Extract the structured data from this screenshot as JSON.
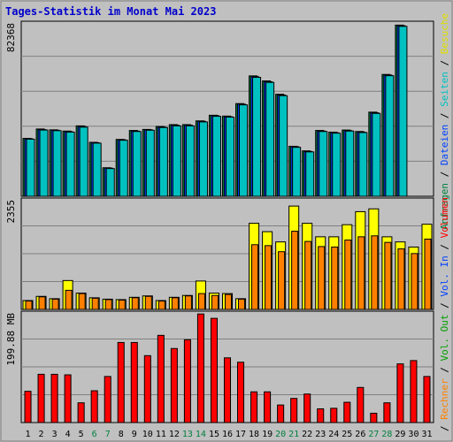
{
  "page_title": "Tages-Statistik im Monat Mai 2023",
  "colors": {
    "background": "#c0c0c0",
    "panel_border": "#000000",
    "title": "#0000cc",
    "anfragen": "#008040",
    "dateien": "#0040ff",
    "seiten": "#00c0c0",
    "besuche": "#ffff00",
    "rechner": "#ff8000",
    "vol_in": "#0040ff",
    "vol_out": "#00a000",
    "volumen": "#ff0000",
    "weekday_label": "#000000",
    "weekend_label": "#008040",
    "grid": "#808080"
  },
  "chart_data": [
    {
      "type": "bar",
      "panel": "top",
      "max_label": "82368",
      "ylim": [
        0,
        82368
      ],
      "categories": [
        "1",
        "2",
        "3",
        "4",
        "5",
        "6",
        "7",
        "8",
        "9",
        "10",
        "11",
        "12",
        "13",
        "14",
        "15",
        "16",
        "17",
        "18",
        "19",
        "20",
        "21",
        "22",
        "23",
        "24",
        "25",
        "26",
        "27",
        "28",
        "29",
        "30",
        "31"
      ],
      "series": [
        {
          "name": "Anfragen",
          "values": [
            27800,
            32300,
            31900,
            31300,
            33800,
            25900,
            13700,
            27300,
            31600,
            32100,
            33500,
            34400,
            34400,
            36200,
            38900,
            38500,
            44500,
            57800,
            55400,
            49000,
            24000,
            21800,
            31600,
            30800,
            31800,
            31100,
            40400,
            58500,
            82200,
            0,
            0
          ]
        },
        {
          "name": "Dateien",
          "values": [
            27600,
            32000,
            31700,
            31000,
            33500,
            25700,
            13500,
            27100,
            31300,
            31900,
            33200,
            34100,
            34100,
            36000,
            38700,
            38200,
            44200,
            57400,
            55000,
            48600,
            23800,
            21500,
            31300,
            30500,
            31500,
            30800,
            40100,
            58200,
            81900,
            0,
            0
          ]
        },
        {
          "name": "Seiten",
          "values": [
            27400,
            31800,
            31500,
            30800,
            33200,
            25500,
            13300,
            26900,
            31100,
            31700,
            33000,
            33800,
            33800,
            35700,
            38400,
            38000,
            43900,
            57100,
            54700,
            48300,
            23500,
            21300,
            31100,
            30300,
            31300,
            30600,
            39800,
            57900,
            81600,
            0,
            0
          ]
        }
      ],
      "series_labels": [
        "Anfragen",
        "Dateien",
        "Seiten"
      ]
    },
    {
      "type": "bar",
      "panel": "middle",
      "max_label": "2355",
      "ylim": [
        0,
        2355
      ],
      "categories": [
        "1",
        "2",
        "3",
        "4",
        "5",
        "6",
        "7",
        "8",
        "9",
        "10",
        "11",
        "12",
        "13",
        "14",
        "15",
        "16",
        "17",
        "18",
        "19",
        "20",
        "21",
        "22",
        "23",
        "24",
        "25",
        "26",
        "27",
        "28",
        "29",
        "30",
        "31"
      ],
      "series": [
        {
          "name": "Besuche",
          "values": [
            190,
            280,
            230,
            620,
            350,
            250,
            220,
            210,
            260,
            290,
            190,
            260,
            300,
            610,
            350,
            340,
            230,
            1850,
            1670,
            1450,
            2220,
            1850,
            1560,
            1560,
            1820,
            2100,
            2160,
            1560,
            1450,
            1340,
            1830
          ]
        },
        {
          "name": "Rechner",
          "values": [
            180,
            270,
            220,
            410,
            340,
            240,
            210,
            200,
            250,
            280,
            180,
            250,
            290,
            340,
            300,
            320,
            220,
            1390,
            1370,
            1240,
            1680,
            1460,
            1350,
            1340,
            1490,
            1560,
            1580,
            1440,
            1300,
            1200,
            1510
          ]
        }
      ],
      "series_labels": [
        "Besuche",
        "Rechner"
      ]
    },
    {
      "type": "bar",
      "panel": "bottom",
      "max_label": "199.88 MB",
      "ylim": [
        0,
        199.88
      ],
      "categories": [
        "1",
        "2",
        "3",
        "4",
        "5",
        "6",
        "7",
        "8",
        "9",
        "10",
        "11",
        "12",
        "13",
        "14",
        "15",
        "16",
        "17",
        "18",
        "19",
        "20",
        "21",
        "22",
        "23",
        "24",
        "25",
        "26",
        "27",
        "28",
        "29",
        "30",
        "31"
      ],
      "series": [
        {
          "name": "Volumen",
          "values": [
            57,
            88,
            88,
            87,
            36,
            58,
            84,
            146,
            146,
            122,
            159,
            135,
            151,
            198,
            190,
            118,
            110,
            56,
            56,
            32,
            44,
            52,
            25,
            26,
            37,
            64,
            17,
            36,
            107,
            113,
            84
          ]
        }
      ],
      "series_labels": [
        "Volumen",
        "Vol. In",
        "Vol. Out"
      ]
    }
  ],
  "right_legend_top": [
    {
      "text": "Anfragen",
      "color": "#008040"
    },
    {
      "text": " / ",
      "color": "#000000"
    },
    {
      "text": "Dateien",
      "color": "#0040ff"
    },
    {
      "text": " / ",
      "color": "#000000"
    },
    {
      "text": "Seiten",
      "color": "#00c0c0"
    },
    {
      "text": " / ",
      "color": "#000000"
    },
    {
      "text": "Besuche",
      "color": "#e0e000"
    }
  ],
  "right_legend_middle": [
    {
      "text": " / ",
      "color": "#000000"
    },
    {
      "text": "Rechner",
      "color": "#ff8000"
    },
    {
      "text": " / ",
      "color": "#000000"
    },
    {
      "text": "Vol. Out",
      "color": "#00a000"
    },
    {
      "text": " / ",
      "color": "#000000"
    },
    {
      "text": "Vol. In",
      "color": "#0040ff"
    },
    {
      "text": " / ",
      "color": "#000000"
    },
    {
      "text": "Volumen",
      "color": "#ff0000"
    }
  ],
  "x_labels": [
    "1",
    "2",
    "3",
    "4",
    "5",
    "6",
    "7",
    "8",
    "9",
    "10",
    "11",
    "12",
    "13",
    "14",
    "15",
    "16",
    "17",
    "18",
    "19",
    "20",
    "21",
    "22",
    "23",
    "24",
    "25",
    "26",
    "27",
    "28",
    "29",
    "30",
    "31"
  ],
  "weekend_days": [
    "6",
    "7",
    "13",
    "14",
    "20",
    "21",
    "27",
    "28"
  ]
}
